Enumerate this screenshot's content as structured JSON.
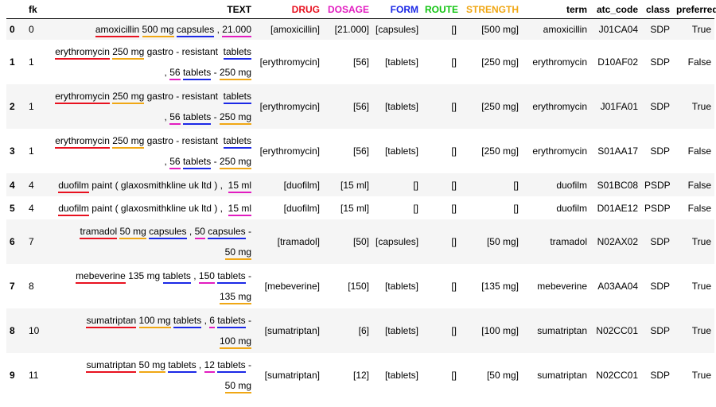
{
  "colors": {
    "drug": "#e8111f",
    "dosage": "#e21cc0",
    "form": "#1b28e6",
    "route": "#12c412",
    "strength": "#f0a714"
  },
  "columns": [
    {
      "key": "index",
      "label": ""
    },
    {
      "key": "fk",
      "label": "fk"
    },
    {
      "key": "text",
      "label": "TEXT"
    },
    {
      "key": "drug",
      "label": "DRUG",
      "color": "drug"
    },
    {
      "key": "dosage",
      "label": "DOSAGE",
      "color": "dosage"
    },
    {
      "key": "form",
      "label": "FORM",
      "color": "form"
    },
    {
      "key": "route",
      "label": "ROUTE",
      "color": "route"
    },
    {
      "key": "strength",
      "label": "STRENGTH",
      "color": "strength"
    },
    {
      "key": "term",
      "label": "term"
    },
    {
      "key": "atc_code",
      "label": "atc_code"
    },
    {
      "key": "class",
      "label": "class"
    },
    {
      "key": "preferred",
      "label": "preferred"
    }
  ],
  "rows": [
    {
      "index": "0",
      "fk": "0",
      "text_lines": [
        [
          {
            "t": "amoxicillin",
            "u": "drug"
          },
          {
            "t": " "
          },
          {
            "t": "500 mg",
            "u": "strength"
          },
          {
            "t": " "
          },
          {
            "t": "capsules",
            "u": "form"
          },
          {
            "t": " , "
          },
          {
            "t": "21.000",
            "u": "dosage"
          }
        ]
      ],
      "drug": "[amoxicillin]",
      "dosage": "[21.000]",
      "form": "[capsules]",
      "route": "[]",
      "strength": "[500 mg]",
      "term": "amoxicillin",
      "atc_code": "J01CA04",
      "class": "SDP",
      "preferred": "True"
    },
    {
      "index": "1",
      "fk": "1",
      "text_lines": [
        [
          {
            "t": "erythromycin",
            "u": "drug"
          },
          {
            "t": " "
          },
          {
            "t": "250 mg",
            "u": "strength"
          },
          {
            "t": " gastro - resistant  "
          },
          {
            "t": "tablets",
            "u": "form"
          }
        ],
        [
          {
            "t": " , "
          },
          {
            "t": "56",
            "u": "dosage"
          },
          {
            "t": " "
          },
          {
            "t": "tablets",
            "u": "form"
          },
          {
            "t": " - "
          },
          {
            "t": "250 mg",
            "u": "strength"
          }
        ]
      ],
      "drug": "[erythromycin]",
      "dosage": "[56]",
      "form": "[tablets]",
      "route": "[]",
      "strength": "[250 mg]",
      "term": "erythromycin",
      "atc_code": "D10AF02",
      "class": "SDP",
      "preferred": "False"
    },
    {
      "index": "2",
      "fk": "1",
      "text_lines": [
        [
          {
            "t": "erythromycin",
            "u": "drug"
          },
          {
            "t": " "
          },
          {
            "t": "250 mg",
            "u": "strength"
          },
          {
            "t": " gastro - resistant  "
          },
          {
            "t": "tablets",
            "u": "form"
          }
        ],
        [
          {
            "t": " , "
          },
          {
            "t": "56",
            "u": "dosage"
          },
          {
            "t": " "
          },
          {
            "t": "tablets",
            "u": "form"
          },
          {
            "t": " - "
          },
          {
            "t": "250 mg",
            "u": "strength"
          }
        ]
      ],
      "drug": "[erythromycin]",
      "dosage": "[56]",
      "form": "[tablets]",
      "route": "[]",
      "strength": "[250 mg]",
      "term": "erythromycin",
      "atc_code": "J01FA01",
      "class": "SDP",
      "preferred": "True"
    },
    {
      "index": "3",
      "fk": "1",
      "text_lines": [
        [
          {
            "t": "erythromycin",
            "u": "drug"
          },
          {
            "t": " "
          },
          {
            "t": "250 mg",
            "u": "strength"
          },
          {
            "t": " gastro - resistant  "
          },
          {
            "t": "tablets",
            "u": "form"
          }
        ],
        [
          {
            "t": " , "
          },
          {
            "t": "56",
            "u": "dosage"
          },
          {
            "t": " "
          },
          {
            "t": "tablets",
            "u": "form"
          },
          {
            "t": " - "
          },
          {
            "t": "250 mg",
            "u": "strength"
          }
        ]
      ],
      "drug": "[erythromycin]",
      "dosage": "[56]",
      "form": "[tablets]",
      "route": "[]",
      "strength": "[250 mg]",
      "term": "erythromycin",
      "atc_code": "S01AA17",
      "class": "SDP",
      "preferred": "False"
    },
    {
      "index": "4",
      "fk": "4",
      "text_lines": [
        [
          {
            "t": "duofilm",
            "u": "drug"
          },
          {
            "t": " paint ( glaxosmithkline uk ltd ) ,  "
          },
          {
            "t": "15 ml",
            "u": "dosage"
          }
        ]
      ],
      "drug": "[duofilm]",
      "dosage": "[15 ml]",
      "form": "[]",
      "route": "[]",
      "strength": "[]",
      "term": "duofilm",
      "atc_code": "S01BC08",
      "class": "PSDP",
      "preferred": "False"
    },
    {
      "index": "5",
      "fk": "4",
      "text_lines": [
        [
          {
            "t": "duofilm",
            "u": "drug"
          },
          {
            "t": " paint ( glaxosmithkline uk ltd ) ,  "
          },
          {
            "t": "15 ml",
            "u": "dosage"
          }
        ]
      ],
      "drug": "[duofilm]",
      "dosage": "[15 ml]",
      "form": "[]",
      "route": "[]",
      "strength": "[]",
      "term": "duofilm",
      "atc_code": "D01AE12",
      "class": "PSDP",
      "preferred": "False"
    },
    {
      "index": "6",
      "fk": "7",
      "text_lines": [
        [
          {
            "t": "tramadol",
            "u": "drug"
          },
          {
            "t": " "
          },
          {
            "t": "50 mg",
            "u": "strength"
          },
          {
            "t": " "
          },
          {
            "t": "capsules",
            "u": "form"
          },
          {
            "t": " , "
          },
          {
            "t": "50",
            "u": "dosage"
          },
          {
            "t": " "
          },
          {
            "t": "capsules",
            "u": "form"
          },
          {
            "t": " -"
          }
        ],
        [
          {
            "t": "50 mg",
            "u": "strength"
          }
        ]
      ],
      "drug": "[tramadol]",
      "dosage": "[50]",
      "form": "[capsules]",
      "route": "[]",
      "strength": "[50 mg]",
      "term": "tramadol",
      "atc_code": "N02AX02",
      "class": "SDP",
      "preferred": "True"
    },
    {
      "index": "7",
      "fk": "8",
      "text_lines": [
        [
          {
            "t": "mebeverine",
            "u": "drug"
          },
          {
            "t": " 135 mg "
          },
          {
            "t": "tablets",
            "u": "form"
          },
          {
            "t": " , "
          },
          {
            "t": "150",
            "u": "dosage"
          },
          {
            "t": " "
          },
          {
            "t": "tablets",
            "u": "form"
          },
          {
            "t": " -"
          }
        ],
        [
          {
            "t": "135 mg",
            "u": "strength"
          }
        ]
      ],
      "drug": "[mebeverine]",
      "dosage": "[150]",
      "form": "[tablets]",
      "route": "[]",
      "strength": "[135 mg]",
      "term": "mebeverine",
      "atc_code": "A03AA04",
      "class": "SDP",
      "preferred": "True"
    },
    {
      "index": "8",
      "fk": "10",
      "text_lines": [
        [
          {
            "t": "sumatriptan",
            "u": "drug"
          },
          {
            "t": " "
          },
          {
            "t": "100 mg",
            "u": "strength"
          },
          {
            "t": " "
          },
          {
            "t": "tablets",
            "u": "form"
          },
          {
            "t": " , "
          },
          {
            "t": "6",
            "u": "dosage"
          },
          {
            "t": " "
          },
          {
            "t": "tablets",
            "u": "form"
          },
          {
            "t": " -"
          }
        ],
        [
          {
            "t": "100 mg",
            "u": "strength"
          }
        ]
      ],
      "drug": "[sumatriptan]",
      "dosage": "[6]",
      "form": "[tablets]",
      "route": "[]",
      "strength": "[100 mg]",
      "term": "sumatriptan",
      "atc_code": "N02CC01",
      "class": "SDP",
      "preferred": "True"
    },
    {
      "index": "9",
      "fk": "11",
      "text_lines": [
        [
          {
            "t": "sumatriptan",
            "u": "drug"
          },
          {
            "t": " "
          },
          {
            "t": "50 mg",
            "u": "strength"
          },
          {
            "t": " "
          },
          {
            "t": "tablets",
            "u": "form"
          },
          {
            "t": " , "
          },
          {
            "t": "12",
            "u": "dosage"
          },
          {
            "t": " "
          },
          {
            "t": "tablets",
            "u": "form"
          },
          {
            "t": " -"
          }
        ],
        [
          {
            "t": "50 mg",
            "u": "strength"
          }
        ]
      ],
      "drug": "[sumatriptan]",
      "dosage": "[12]",
      "form": "[tablets]",
      "route": "[]",
      "strength": "[50 mg]",
      "term": "sumatriptan",
      "atc_code": "N02CC01",
      "class": "SDP",
      "preferred": "True"
    }
  ]
}
